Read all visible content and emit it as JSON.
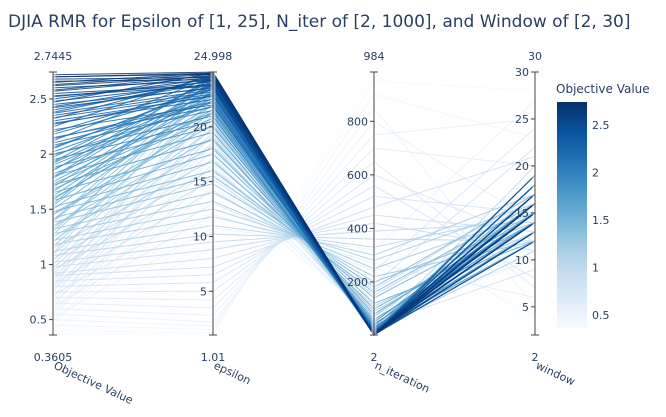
{
  "chart_data": {
    "type": "parallel_coordinates",
    "title": "DJIA RMR for Epsilon of [1, 25], N_iter of [2, 1000], and Window of [2, 30]",
    "dimensions": [
      {
        "label": "Objective Value",
        "range": [
          0.3605,
          2.7445
        ],
        "range_labels": [
          "0.3605",
          "2.7445"
        ],
        "ticks": [
          0.5,
          1,
          1.5,
          2,
          2.5
        ]
      },
      {
        "label": "epsilon",
        "range": [
          1.01,
          24.998
        ],
        "range_labels": [
          "1.01",
          "24.998"
        ],
        "ticks": [
          5,
          10,
          15,
          20
        ]
      },
      {
        "label": "n_iteration",
        "range": [
          2,
          984
        ],
        "range_labels": [
          "2",
          "984"
        ],
        "ticks": [
          200,
          400,
          600,
          800
        ]
      },
      {
        "label": "window",
        "range": [
          2,
          30
        ],
        "range_labels": [
          "2",
          "30"
        ],
        "ticks": [
          5,
          10,
          15,
          20,
          25,
          30
        ]
      }
    ],
    "colorbar": {
      "title": "Objective Value",
      "range": [
        0.3605,
        2.7445
      ],
      "ticks": [
        0.5,
        1,
        1.5,
        2,
        2.5
      ],
      "colorscale": [
        "#f7fbff",
        "#deebf7",
        "#c6dbef",
        "#9ecae1",
        "#6baed6",
        "#4292c6",
        "#2171b5",
        "#08519c",
        "#08306b"
      ]
    },
    "lines": [
      [
        2.7,
        24.8,
        3,
        16
      ],
      [
        2.68,
        24.5,
        2,
        15
      ],
      [
        2.65,
        24.9,
        4,
        17
      ],
      [
        2.6,
        24.2,
        5,
        14
      ],
      [
        2.72,
        24.99,
        2,
        16
      ],
      [
        2.55,
        23.8,
        6,
        13
      ],
      [
        2.5,
        24.4,
        8,
        15
      ],
      [
        2.45,
        23.5,
        3,
        18
      ],
      [
        2.4,
        24.0,
        10,
        14
      ],
      [
        2.35,
        23.2,
        4,
        16
      ],
      [
        2.3,
        22.8,
        12,
        15
      ],
      [
        2.62,
        24.6,
        3,
        12
      ],
      [
        2.58,
        24.7,
        2,
        19
      ],
      [
        2.52,
        24.1,
        5,
        16
      ],
      [
        2.48,
        23.9,
        7,
        17
      ],
      [
        2.42,
        23.6,
        2,
        13
      ],
      [
        2.38,
        24.3,
        9,
        15
      ],
      [
        2.33,
        23.0,
        15,
        16
      ],
      [
        2.28,
        22.5,
        4,
        18
      ],
      [
        2.25,
        24.8,
        6,
        14
      ],
      [
        2.22,
        22.0,
        20,
        15
      ],
      [
        2.18,
        23.4,
        3,
        17
      ],
      [
        2.15,
        21.8,
        25,
        16
      ],
      [
        2.12,
        24.6,
        5,
        12
      ],
      [
        2.1,
        22.2,
        8,
        19
      ],
      [
        2.08,
        21.5,
        30,
        14
      ],
      [
        2.05,
        23.7,
        4,
        15
      ],
      [
        2.02,
        22.9,
        12,
        16
      ],
      [
        2.0,
        21.0,
        18,
        13
      ],
      [
        1.97,
        24.2,
        2,
        17
      ],
      [
        1.95,
        20.5,
        40,
        15
      ],
      [
        1.92,
        23.1,
        6,
        14
      ],
      [
        1.9,
        22.6,
        10,
        18
      ],
      [
        1.88,
        20.0,
        50,
        16
      ],
      [
        1.85,
        24.5,
        3,
        15
      ],
      [
        1.82,
        21.3,
        22,
        12
      ],
      [
        1.8,
        19.5,
        60,
        14
      ],
      [
        1.78,
        23.9,
        5,
        16
      ],
      [
        1.75,
        22.4,
        14,
        19
      ],
      [
        1.72,
        18.8,
        80,
        15
      ],
      [
        1.7,
        24.0,
        2,
        13
      ],
      [
        1.68,
        20.8,
        35,
        17
      ],
      [
        1.65,
        18.0,
        100,
        14
      ],
      [
        1.62,
        23.3,
        7,
        16
      ],
      [
        1.6,
        21.6,
        28,
        15
      ],
      [
        1.58,
        17.5,
        120,
        12
      ],
      [
        1.55,
        24.7,
        4,
        18
      ],
      [
        1.52,
        16.8,
        140,
        15
      ],
      [
        1.5,
        22.7,
        9,
        14
      ],
      [
        1.48,
        16.0,
        160,
        16
      ],
      [
        1.45,
        20.2,
        45,
        13
      ],
      [
        1.42,
        15.5,
        180,
        17
      ],
      [
        1.4,
        24.1,
        3,
        15
      ],
      [
        1.38,
        14.8,
        200,
        14
      ],
      [
        1.35,
        19.0,
        70,
        16
      ],
      [
        1.32,
        14.0,
        220,
        12
      ],
      [
        1.3,
        23.5,
        6,
        18
      ],
      [
        1.28,
        13.2,
        250,
        15
      ],
      [
        1.25,
        18.2,
        90,
        14
      ],
      [
        1.22,
        12.5,
        280,
        16
      ],
      [
        1.2,
        22.1,
        16,
        11
      ],
      [
        1.18,
        11.8,
        300,
        17
      ],
      [
        1.15,
        17.0,
        110,
        13
      ],
      [
        1.12,
        11.0,
        330,
        15
      ],
      [
        1.1,
        24.6,
        2,
        19
      ],
      [
        1.08,
        10.2,
        360,
        12
      ],
      [
        1.05,
        16.2,
        150,
        16
      ],
      [
        1.02,
        9.5,
        390,
        14
      ],
      [
        1.0,
        21.0,
        24,
        20
      ],
      [
        0.98,
        8.8,
        420,
        11
      ],
      [
        0.95,
        15.2,
        170,
        17
      ],
      [
        0.92,
        8.0,
        450,
        13
      ],
      [
        0.9,
        7.2,
        480,
        21
      ],
      [
        0.88,
        20.0,
        38,
        9
      ],
      [
        0.85,
        6.5,
        520,
        15
      ],
      [
        0.82,
        14.2,
        190,
        22
      ],
      [
        0.8,
        5.8,
        560,
        8
      ],
      [
        0.78,
        19.2,
        55,
        18
      ],
      [
        0.75,
        5.0,
        600,
        12
      ],
      [
        0.72,
        13.0,
        240,
        24
      ],
      [
        0.7,
        4.2,
        650,
        7
      ],
      [
        0.68,
        18.4,
        75,
        16
      ],
      [
        0.65,
        3.5,
        700,
        20
      ],
      [
        0.62,
        12.0,
        270,
        6
      ],
      [
        0.6,
        2.8,
        750,
        25
      ],
      [
        0.58,
        17.2,
        95,
        10
      ],
      [
        0.55,
        2.2,
        800,
        14
      ],
      [
        0.52,
        10.8,
        320,
        27
      ],
      [
        0.5,
        1.8,
        850,
        5
      ],
      [
        0.48,
        15.8,
        130,
        19
      ],
      [
        0.45,
        1.5,
        900,
        23
      ],
      [
        0.42,
        9.0,
        400,
        4
      ],
      [
        0.4,
        1.2,
        950,
        28
      ],
      [
        0.38,
        14.5,
        210,
        11
      ],
      [
        0.37,
        1.05,
        984,
        30
      ],
      [
        0.36,
        6.0,
        500,
        3
      ],
      [
        2.7,
        24.9,
        2,
        15
      ],
      [
        2.66,
        24.3,
        3,
        14
      ],
      [
        2.63,
        24.8,
        2,
        16
      ],
      [
        2.57,
        24.5,
        4,
        15
      ],
      [
        2.53,
        23.7,
        2,
        17
      ],
      [
        2.47,
        24.9,
        6,
        14
      ],
      [
        2.43,
        24.2,
        3,
        16
      ],
      [
        2.37,
        23.4,
        8,
        15
      ],
      [
        2.32,
        24.6,
        2,
        13
      ],
      [
        2.27,
        22.9,
        5,
        16
      ],
      [
        2.2,
        23.8,
        10,
        15
      ],
      [
        2.14,
        22.3,
        3,
        18
      ],
      [
        2.06,
        23.5,
        7,
        14
      ],
      [
        1.99,
        21.9,
        12,
        16
      ],
      [
        1.93,
        24.4,
        4,
        15
      ],
      [
        1.86,
        22.8,
        2,
        17
      ],
      [
        1.79,
        24.7,
        6,
        14
      ],
      [
        1.73,
        21.2,
        15,
        16
      ],
      [
        1.66,
        23.6,
        3,
        15
      ],
      [
        1.59,
        22.0,
        9,
        13
      ],
      [
        1.53,
        24.3,
        5,
        17
      ],
      [
        1.46,
        20.6,
        18,
        15
      ],
      [
        1.39,
        23.2,
        2,
        16
      ],
      [
        1.33,
        21.4,
        11,
        14
      ],
      [
        1.27,
        24.0,
        4,
        18
      ],
      [
        1.21,
        19.8,
        20,
        15
      ],
      [
        1.16,
        22.5,
        6,
        16
      ],
      [
        1.09,
        20.9,
        14,
        12
      ],
      [
        1.03,
        23.8,
        3,
        17
      ],
      [
        0.97,
        19.4,
        26,
        15
      ],
      [
        0.91,
        21.7,
        8,
        14
      ],
      [
        0.86,
        18.6,
        32,
        16
      ],
      [
        0.81,
        22.7,
        5,
        13
      ],
      [
        0.76,
        17.8,
        42,
        17
      ],
      [
        0.71,
        20.4,
        13,
        15
      ],
      [
        0.66,
        16.6,
        48,
        12
      ],
      [
        0.61,
        21.5,
        7,
        18
      ],
      [
        0.56,
        15.6,
        58,
        14
      ],
      [
        0.51,
        19.6,
        16,
        16
      ],
      [
        0.46,
        14.6,
        66,
        10
      ]
    ]
  }
}
